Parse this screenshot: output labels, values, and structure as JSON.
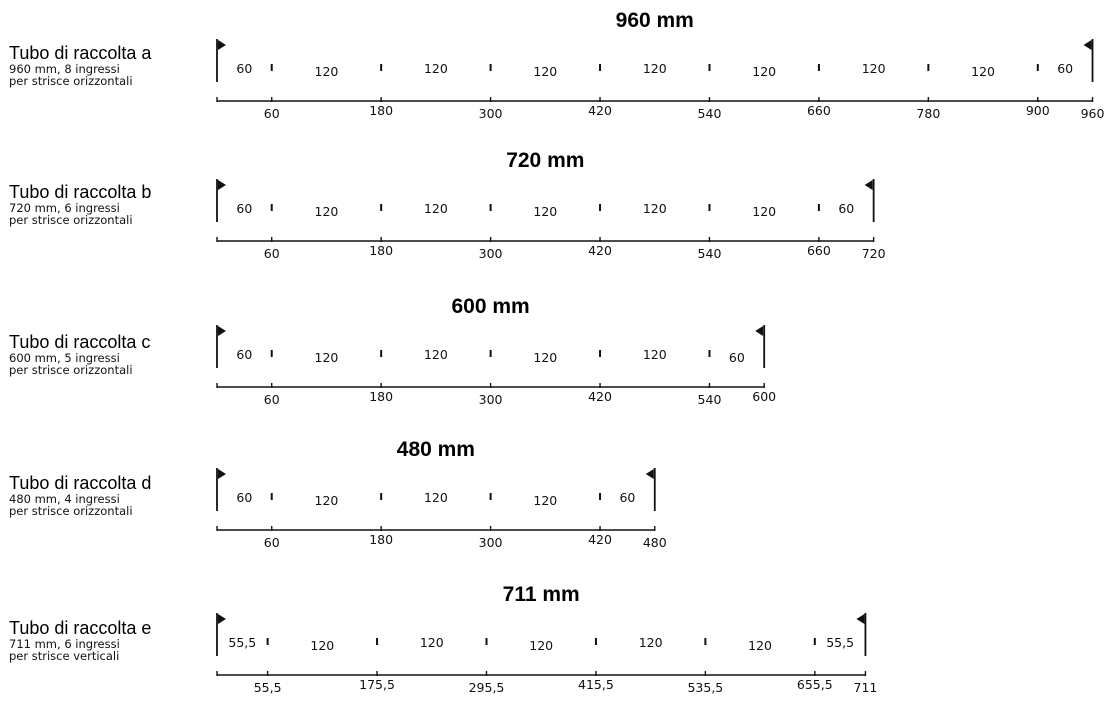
{
  "sections": [
    {
      "title": "Tubo di raccolta a",
      "line1": "960 mm, 8 ingressi",
      "line2": "per strisce orizzontali",
      "total_label": "960 mm",
      "segments": [
        "60",
        "120",
        "120",
        "120",
        "120",
        "120",
        "120",
        "120",
        "60"
      ],
      "ruler_labels": [
        "60",
        "180",
        "300",
        "420",
        "540",
        "660",
        "780",
        "900",
        "960"
      ]
    },
    {
      "title": "Tubo di raccolta b",
      "line1": "720 mm, 6 ingressi",
      "line2": "per strisce orizzontali",
      "total_label": "720 mm",
      "segments": [
        "60",
        "120",
        "120",
        "120",
        "120",
        "120",
        "60"
      ],
      "ruler_labels": [
        "60",
        "180",
        "300",
        "420",
        "540",
        "660",
        "720"
      ]
    },
    {
      "title": "Tubo di raccolta c",
      "line1": "600 mm, 5 ingressi",
      "line2": "per strisce orizzontali",
      "total_label": "600 mm",
      "segments": [
        "60",
        "120",
        "120",
        "120",
        "120",
        "60"
      ],
      "ruler_labels": [
        "60",
        "180",
        "300",
        "420",
        "540",
        "600"
      ]
    },
    {
      "title": "Tubo di raccolta d",
      "line1": "480 mm, 4 ingressi",
      "line2": "per strisce orizzontali",
      "total_label": "480 mm",
      "segments": [
        "60",
        "120",
        "120",
        "120",
        "60"
      ],
      "ruler_labels": [
        "60",
        "180",
        "300",
        "420",
        "480"
      ]
    },
    {
      "title": "Tubo di raccolta e",
      "line1": "711 mm, 6 ingressi",
      "line2": "per strisce verticali",
      "total_label": "711 mm",
      "segments": [
        "55,5",
        "120",
        "120",
        "120",
        "120",
        "120",
        "55,5"
      ],
      "ruler_labels": [
        "55,5",
        "175,5",
        "295,5",
        "415,5",
        "535,5",
        "655,5",
        "711"
      ]
    }
  ]
}
